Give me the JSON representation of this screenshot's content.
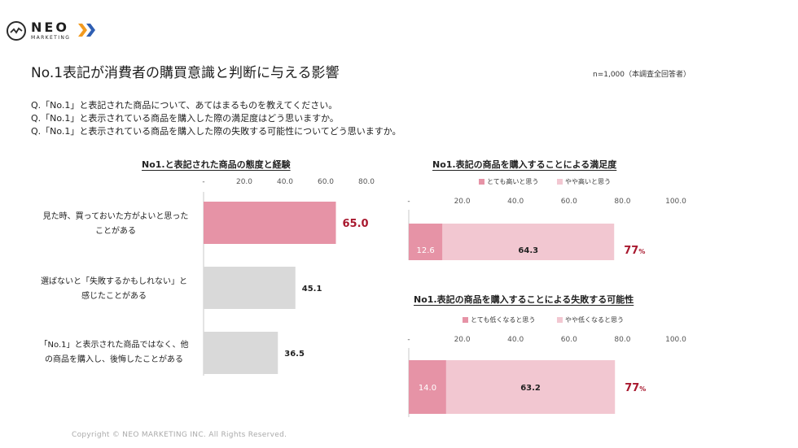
{
  "logo": {
    "name": "NEO",
    "sub": "MARKETING"
  },
  "header": {
    "title": "No.1表記が消費者の購買意識と判断に与える影響",
    "sample_note": "n=1,000（本調査全回答者）"
  },
  "questions": [
    "Q.「No.1」と表記された商品について、あてはまるものを教えてください。",
    "Q.「No.1」と表示されている商品を購入した際の満足度はどう思いますか。",
    "Q.「No.1」と表示されている商品を購入した際の失敗する可能性についてどう思いますか。"
  ],
  "chart_data": [
    {
      "type": "bar",
      "orientation": "horizontal",
      "title": "No1.と表記された商品の態度と経験",
      "categories": [
        "見た時、買っておいた方がよいと思ったことがある",
        "選ばないと「失敗するかもしれない」と感じたことがある",
        "「No.1」と表示された商品ではなく、他の商品を購入し、後悔したことがある"
      ],
      "category_lines": [
        [
          "見た時、買っておいた方がよいと思った",
          "ことがある"
        ],
        [
          "選ばないと「失敗するかもしれない」と",
          "感じたことがある"
        ],
        [
          "「No.1」と表示された商品ではなく、他",
          "の商品を購入し、後悔したことがある"
        ]
      ],
      "values": [
        65.0,
        45.1,
        36.5
      ],
      "value_labels": [
        "65.0",
        "45.1",
        "36.5"
      ],
      "xlim": [
        0,
        80
      ],
      "ticks": [
        "-",
        "20.0",
        "40.0",
        "60.0",
        "80.0"
      ],
      "highlight_color": "#e693a6",
      "bar_color": "#d9d9d9",
      "highlight_label_color": "#a8182e"
    },
    {
      "type": "bar",
      "orientation": "horizontal",
      "stacked": true,
      "title": "No1.表記の商品を購入することによる満足度",
      "series": [
        {
          "name": "とても高いと思う",
          "values": [
            12.6
          ],
          "color": "#e693a6"
        },
        {
          "name": "やや高いと思う",
          "values": [
            64.3
          ],
          "color": "#f2c7d1"
        }
      ],
      "value_labels": [
        "12.6",
        "64.3"
      ],
      "total": "77",
      "total_unit": "%",
      "xlim": [
        0,
        100
      ],
      "ticks": [
        "-",
        "20.0",
        "40.0",
        "60.0",
        "80.0",
        "100.0"
      ]
    },
    {
      "type": "bar",
      "orientation": "horizontal",
      "stacked": true,
      "title": "No1.表記の商品を購入することによる失敗する可能性",
      "series": [
        {
          "name": "とても低くなると思う",
          "values": [
            14.0
          ],
          "color": "#e693a6"
        },
        {
          "name": "やや低くなると思う",
          "values": [
            63.2
          ],
          "color": "#f2c7d1"
        }
      ],
      "value_labels": [
        "14.0",
        "63.2"
      ],
      "total": "77",
      "total_unit": "%",
      "xlim": [
        0,
        100
      ],
      "ticks": [
        "-",
        "20.0",
        "40.0",
        "60.0",
        "80.0",
        "100.0"
      ]
    }
  ],
  "colors": {
    "accent": "#a8182e",
    "logo_orange": "#f29a1f",
    "logo_blue": "#2f5fb3"
  },
  "footer": {
    "copyright": "Copyright © NEO MARKETING INC. All Rights Reserved."
  }
}
